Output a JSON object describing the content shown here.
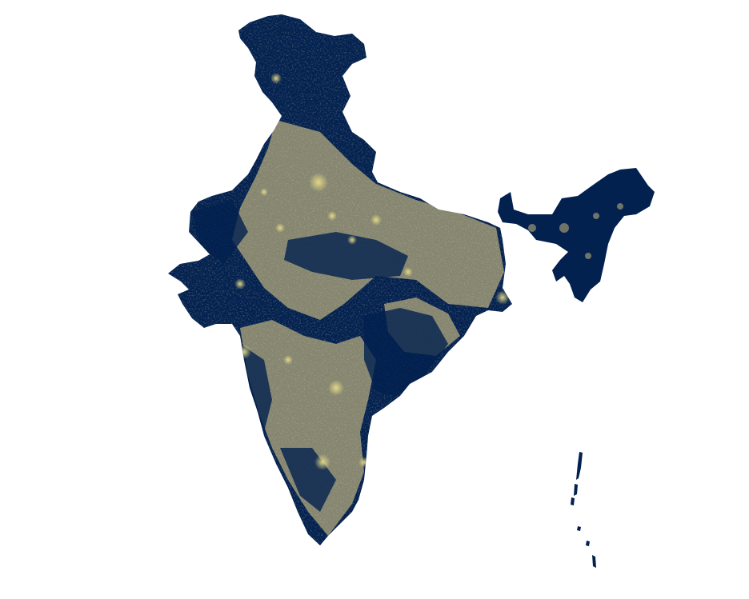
{
  "map": {
    "colors": {
      "background": "#ffffff",
      "low_light": "#03214f",
      "lit_area": "#9e9876",
      "bright_core": "#e7dc88"
    },
    "regions": [
      "mainland-india",
      "northeast-india",
      "andaman-nicobar-islands"
    ]
  }
}
